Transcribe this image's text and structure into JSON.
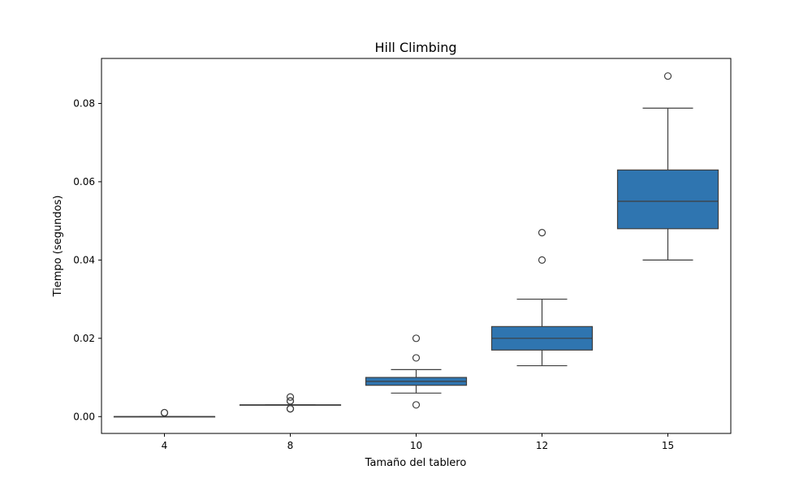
{
  "chart_data": {
    "type": "box",
    "title": "Hill Climbing",
    "xlabel": "Tamaño del tablero",
    "ylabel": "Tiempo (segundos)",
    "ylim": [
      -0.0043,
      0.0915
    ],
    "yticks": [
      0.0,
      0.02,
      0.04,
      0.06,
      0.08
    ],
    "ytick_labels": [
      "0.00",
      "0.02",
      "0.04",
      "0.06",
      "0.08"
    ],
    "categories": [
      "4",
      "8",
      "10",
      "12",
      "15"
    ],
    "box_color": "#2f75b0",
    "line_color": "#3f3f3f",
    "grid": false,
    "boxes": [
      {
        "category": "4",
        "whislo": 0.0,
        "q1": 0.0,
        "med": 0.0,
        "q3": 0.0,
        "whishi": 0.0,
        "fliers": [
          0.001,
          0.001
        ]
      },
      {
        "category": "8",
        "whislo": 0.003,
        "q1": 0.003,
        "med": 0.003,
        "q3": 0.003,
        "whishi": 0.003,
        "fliers": [
          0.002,
          0.002,
          0.004,
          0.004,
          0.005
        ]
      },
      {
        "category": "10",
        "whislo": 0.006,
        "q1": 0.008,
        "med": 0.009,
        "q3": 0.01,
        "whishi": 0.012,
        "fliers": [
          0.003,
          0.015,
          0.02
        ]
      },
      {
        "category": "12",
        "whislo": 0.013,
        "q1": 0.017,
        "med": 0.02,
        "q3": 0.023,
        "whishi": 0.03,
        "fliers": [
          0.04,
          0.047
        ]
      },
      {
        "category": "15",
        "whislo": 0.04,
        "q1": 0.048,
        "med": 0.055,
        "q3": 0.063,
        "whishi": 0.0788,
        "fliers": [
          0.087
        ]
      }
    ]
  }
}
